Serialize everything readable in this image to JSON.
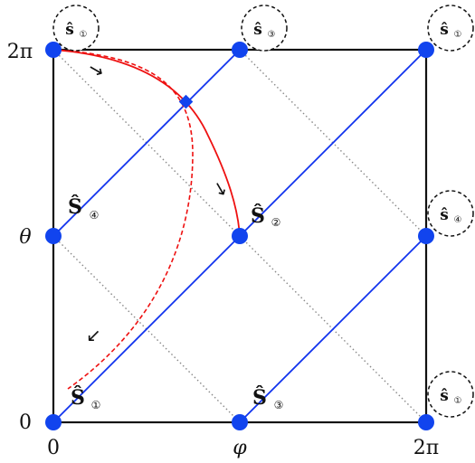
{
  "axes": {
    "x_tick_left": "0",
    "x_tick_mid": "φ",
    "x_tick_right": "2π",
    "y_tick_bottom": "0",
    "y_tick_mid": "θ",
    "y_tick_top": "2π"
  },
  "states": {
    "s1": {
      "main": "Ŝ",
      "sub": "①"
    },
    "s2": {
      "main": "Ŝ",
      "sub": "②"
    },
    "s3": {
      "main": "Ŝ",
      "sub": "③"
    },
    "s4": {
      "main": "Ŝ",
      "sub": "④"
    }
  },
  "ghost_states": {
    "top_left": {
      "main": "ŝ",
      "sub": "①"
    },
    "top_mid": {
      "main": "ŝ",
      "sub": "③"
    },
    "top_right": {
      "main": "ŝ",
      "sub": "①"
    },
    "right_mid": {
      "main": "ŝ",
      "sub": "④"
    },
    "bottom_right": {
      "main": "ŝ",
      "sub": "①"
    }
  },
  "arrows": {
    "arrow_top": "→",
    "arrow_mid": "→",
    "arrow_low": "→"
  },
  "colors": {
    "frame": "#111111",
    "blue": "#1133ee",
    "node_blue": "#1144ee",
    "red": "#ee1111",
    "grid_dotted": "#888888"
  }
}
